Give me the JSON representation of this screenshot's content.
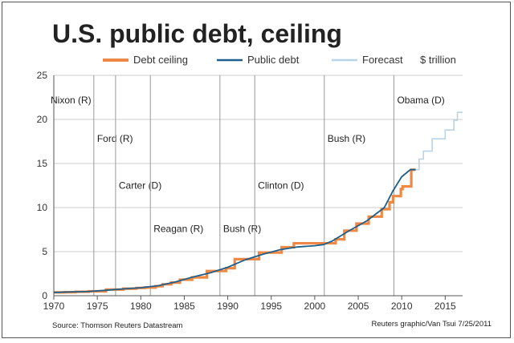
{
  "chart_data": {
    "type": "line",
    "title": "U.S. public debt, ceiling",
    "unit_label": "$ trillion",
    "xlim": [
      1970,
      2017
    ],
    "ylim": [
      0,
      25
    ],
    "x_ticks": [
      1970,
      1975,
      1980,
      1985,
      1990,
      1995,
      2000,
      2005,
      2010,
      2015
    ],
    "y_ticks": [
      0,
      5,
      10,
      15,
      20,
      25
    ],
    "grid": "horizontal",
    "legend_position": "top",
    "colors": {
      "debt_ceiling": "#ee8844",
      "public_debt": "#1f5f8b",
      "forecast": "#b8d4e8",
      "president_lines": "#999999",
      "grid": "#bbbbbb",
      "frame": "#555555"
    },
    "series": [
      {
        "name": "Debt ceiling",
        "step": true,
        "x": [
          1970,
          1971.2,
          1972.5,
          1974.0,
          1976.0,
          1978.0,
          1979.5,
          1980.5,
          1981.7,
          1982.5,
          1983.5,
          1984.5,
          1985.9,
          1987.6,
          1989.8,
          1990.8,
          1993.6,
          1996.2,
          1997.6,
          2002.4,
          2003.4,
          2004.8,
          2006.2,
          2007.7,
          2008.6,
          2009.0,
          2009.9,
          2010.1,
          2011.1,
          2011.6
        ],
        "y": [
          0.38,
          0.4,
          0.45,
          0.5,
          0.7,
          0.8,
          0.88,
          0.93,
          1.08,
          1.29,
          1.49,
          1.82,
          2.08,
          2.8,
          3.12,
          4.15,
          4.9,
          5.5,
          5.95,
          6.4,
          7.38,
          8.18,
          8.97,
          9.82,
          10.6,
          11.3,
          12.1,
          12.4,
          14.29,
          14.29
        ]
      },
      {
        "name": "Public debt",
        "step": false,
        "x": [
          1970,
          1972,
          1974,
          1976,
          1978,
          1980,
          1982,
          1984,
          1986,
          1988,
          1990,
          1992,
          1994,
          1996,
          1998,
          2000,
          2001,
          2002,
          2004,
          2006,
          2008,
          2009,
          2010,
          2011,
          2011.6
        ],
        "y": [
          0.37,
          0.43,
          0.48,
          0.62,
          0.77,
          0.91,
          1.14,
          1.57,
          2.13,
          2.6,
          3.23,
          4.07,
          4.69,
          5.22,
          5.53,
          5.67,
          5.8,
          6.2,
          7.4,
          8.5,
          10.0,
          11.9,
          13.5,
          14.3,
          14.3
        ]
      },
      {
        "name": "Forecast",
        "step": true,
        "x": [
          2011.6,
          2012.0,
          2012.5,
          2013.0,
          2013.5,
          2014.3,
          2015.0,
          2016.0,
          2016.4,
          2017.0
        ],
        "y": [
          14.3,
          15.5,
          16.4,
          16.4,
          17.8,
          17.8,
          18.8,
          19.9,
          20.8,
          20.8
        ]
      }
    ],
    "presidents": [
      {
        "label": "Nixon (R)",
        "start": 1969.1,
        "label_y": 22.2
      },
      {
        "label": "Ford (R)",
        "start": 1974.6,
        "label_y": 17.8
      },
      {
        "label": "Carter (D)",
        "start": 1977.1,
        "label_y": 12.5
      },
      {
        "label": "Reagan (R)",
        "start": 1981.1,
        "label_y": 7.6
      },
      {
        "label": "Bush (R)",
        "start": 1989.1,
        "label_y": 7.6
      },
      {
        "label": "Clinton (D)",
        "start": 1993.1,
        "label_y": 12.5
      },
      {
        "label": "Bush (R)",
        "start": 2001.1,
        "label_y": 17.8
      },
      {
        "label": "Obama (D)",
        "start": 2009.1,
        "label_y": 22.2
      }
    ],
    "source": "Source: Thomson Reuters Datastream",
    "credit": "Reuters graphic/Van Tsui 7/25/2011"
  }
}
